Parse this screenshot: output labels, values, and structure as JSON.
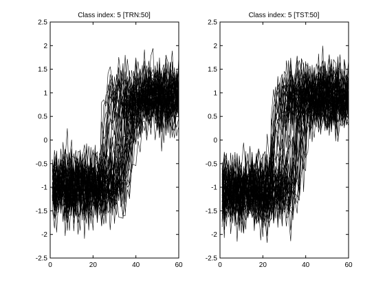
{
  "chart_data": [
    {
      "type": "line",
      "title": "Class index: 5 [TRN:50]",
      "xlabel": "",
      "ylabel": "",
      "xlim": [
        0,
        60
      ],
      "ylim": [
        -2.5,
        2.5
      ],
      "xticks": [
        0,
        20,
        40,
        60
      ],
      "yticks": [
        -2.5,
        -2,
        -1.5,
        -1,
        -0.5,
        0,
        0.5,
        1,
        1.5,
        2,
        2.5
      ],
      "grid": false,
      "line_color": "#000000",
      "num_series": 50,
      "series_length": 60,
      "pattern": {
        "low_level": -1.0,
        "high_level": 0.9,
        "transition_start_range": [
          20,
          36
        ],
        "noise_amplitude": 0.45,
        "series_min": -2.3,
        "series_max": 1.95
      }
    },
    {
      "type": "line",
      "title": "Class index: 5 [TST:50]",
      "xlabel": "",
      "ylabel": "",
      "xlim": [
        0,
        60
      ],
      "ylim": [
        -2.5,
        2.5
      ],
      "xticks": [
        0,
        20,
        40,
        60
      ],
      "yticks": [
        -2.5,
        -2,
        -1.5,
        -1,
        -0.5,
        0,
        0.5,
        1,
        1.5,
        2,
        2.5
      ],
      "grid": false,
      "line_color": "#000000",
      "num_series": 50,
      "series_length": 60,
      "pattern": {
        "low_level": -1.0,
        "high_level": 0.9,
        "transition_start_range": [
          20,
          38
        ],
        "noise_amplitude": 0.45,
        "series_min": -2.3,
        "series_max": 2.05
      }
    }
  ]
}
